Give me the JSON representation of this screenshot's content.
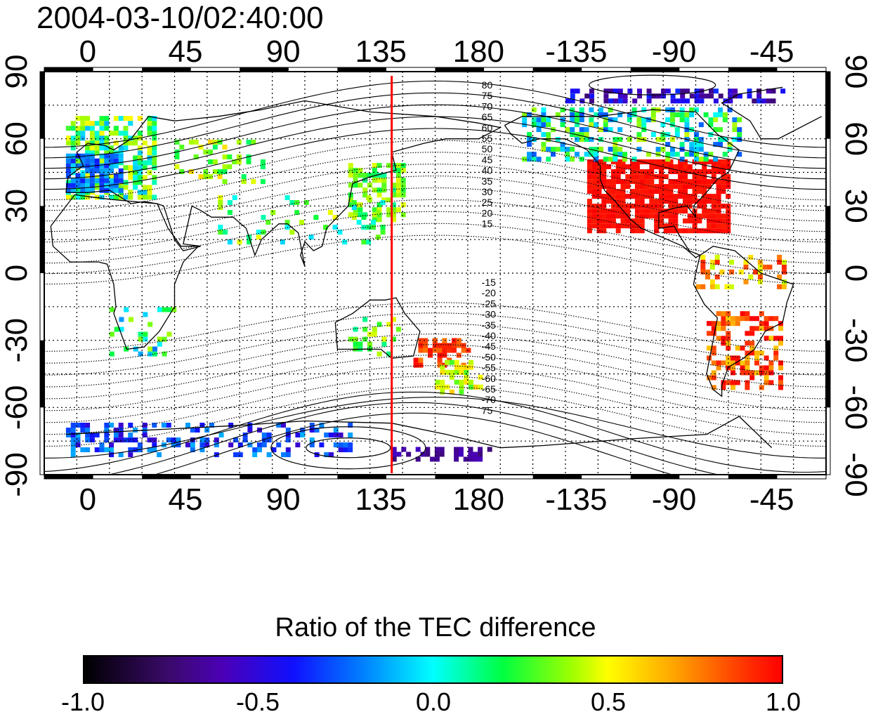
{
  "title": "2004-03-10/02:40:00",
  "map": {
    "lon_ticks": [
      "0",
      "45",
      "90",
      "135",
      "180",
      "-135",
      "-90",
      "-45"
    ],
    "lat_ticks": [
      "90",
      "60",
      "30",
      "0",
      "-30",
      "-60",
      "-90"
    ],
    "marker_longitude": 140,
    "contour_labels_north": [
      "80",
      "75",
      "70",
      "65",
      "60",
      "55",
      "50",
      "45",
      "40",
      "35",
      "30",
      "25",
      "20",
      "15"
    ],
    "contour_labels_south": [
      "-15",
      "-20",
      "-25",
      "-30",
      "-35",
      "-40",
      "-45",
      "-50",
      "-55",
      "-60",
      "-65",
      "-70",
      "75"
    ]
  },
  "colorbar": {
    "title": "Ratio of the TEC difference",
    "ticks": [
      "-1.0",
      "-0.5",
      "0.0",
      "0.5",
      "1.0"
    ],
    "range": [
      -1.0,
      1.0
    ]
  },
  "colors": {
    "marker": "#ff0000",
    "frame": "#000000",
    "gradient_stops": [
      "#000000",
      "#3a0a6a",
      "#4b00b8",
      "#1010ff",
      "#0080ff",
      "#00ffff",
      "#00ff40",
      "#a0ff00",
      "#ffff00",
      "#ffa000",
      "#ff3000",
      "#ff0000"
    ]
  }
}
